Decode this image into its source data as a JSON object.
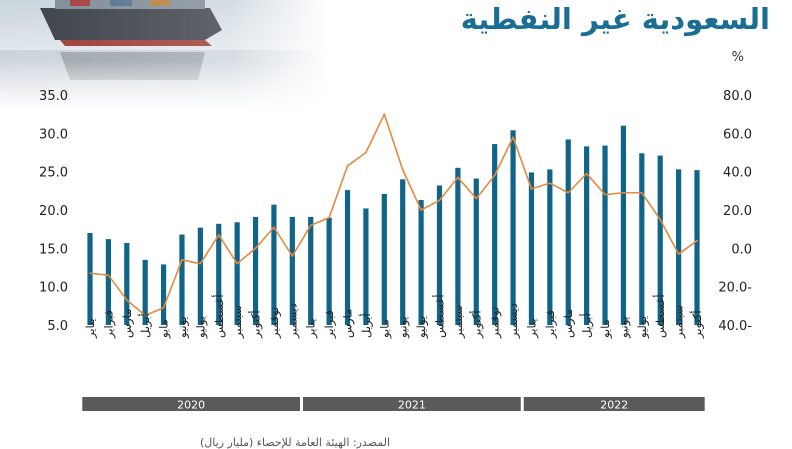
{
  "header": {
    "title": "السعودية غير النفطية",
    "right_axis_unit": "%"
  },
  "chart_data": {
    "type": "bar",
    "title": "السعودية غير النفطية",
    "categories": [
      "يناير",
      "فبراير",
      "مارس",
      "أبريل",
      "مايو",
      "يونيو",
      "يوليو",
      "أغسطس",
      "سبتمبر",
      "أكتوبر",
      "نوفمبر",
      "ديسمبر",
      "يناير",
      "فبراير",
      "مارس",
      "أبريل",
      "مايو",
      "يونيو",
      "يوليو",
      "أغسطس",
      "سبتمبر",
      "أكتوبر",
      "نوفمبر",
      "ديسمبر",
      "يناير",
      "فبراير",
      "مارس",
      "أبريل",
      "مايو",
      "يونيو",
      "يوليو",
      "أغسطس",
      "سبتمبر",
      "أكتوبر"
    ],
    "years": [
      {
        "label": "2020",
        "start": 0,
        "end": 11
      },
      {
        "label": "2021",
        "start": 12,
        "end": 23
      },
      {
        "label": "2022",
        "start": 24,
        "end": 33
      }
    ],
    "series": [
      {
        "type": "bar",
        "axis": "left",
        "color": "#0f6487",
        "values": [
          17.0,
          16.2,
          15.7,
          13.5,
          12.9,
          16.8,
          17.7,
          18.2,
          18.4,
          19.1,
          20.7,
          19.1,
          19.1,
          19.0,
          22.6,
          20.2,
          22.1,
          24.0,
          21.3,
          23.2,
          25.5,
          24.1,
          28.6,
          30.4,
          24.9,
          25.3,
          29.2,
          28.3,
          28.4,
          31.0,
          27.4,
          27.1,
          25.3,
          25.2
        ]
      },
      {
        "type": "line",
        "axis": "right",
        "color": "#e58a3f",
        "values": [
          -13,
          -14,
          -27,
          -35,
          -31,
          -6,
          -8,
          7,
          -8,
          0,
          11,
          -4,
          12,
          16,
          43,
          50,
          70,
          41,
          20,
          25,
          37,
          26,
          38,
          58,
          31,
          34,
          29,
          39,
          28,
          29,
          29,
          15,
          -3,
          4
        ]
      }
    ],
    "left_axis": {
      "ylim": [
        5.0,
        35.0
      ],
      "ticks": [
        "35.0",
        "30.0",
        "25.0",
        "20.0",
        "15.0",
        "10.0",
        "5.0"
      ]
    },
    "right_axis": {
      "ylim": [
        -40.0,
        80.0
      ],
      "ticks": [
        "80.0",
        "60.0",
        "40.0",
        "20.0",
        "0.0",
        "20.0-",
        "40.0-"
      ]
    },
    "grid": false,
    "legend": "none"
  },
  "footer": {
    "note": "المصدر: الهيئة العامة للإحصاء (مليار ريال)"
  }
}
